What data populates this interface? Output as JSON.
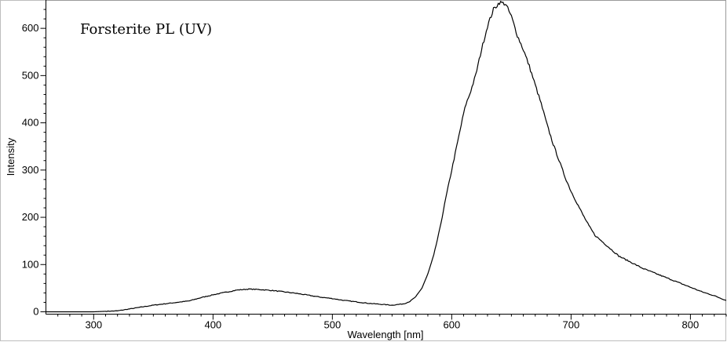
{
  "chart_data": {
    "type": "line",
    "title": "Forsterite PL (UV)",
    "xlabel": "Wavelength [nm]",
    "ylabel": "Intensity",
    "xlim": [
      260,
      830
    ],
    "ylim": [
      -5,
      660
    ],
    "x_ticks": [
      300,
      400,
      500,
      600,
      700,
      800
    ],
    "y_ticks": [
      0,
      100,
      200,
      300,
      400,
      500,
      600
    ],
    "grid": false,
    "series": [
      {
        "line_color": "#000000",
        "x": [
          260,
          300,
          320,
          330,
          340,
          350,
          360,
          370,
          380,
          390,
          400,
          410,
          420,
          430,
          440,
          450,
          460,
          470,
          480,
          490,
          500,
          510,
          520,
          530,
          540,
          550,
          560,
          565,
          570,
          575,
          580,
          585,
          590,
          595,
          600,
          605,
          610,
          612,
          615,
          620,
          625,
          630,
          635,
          640,
          645,
          650,
          655,
          660,
          665,
          670,
          675,
          680,
          685,
          690,
          695,
          700,
          705,
          710,
          715,
          720,
          730,
          740,
          750,
          760,
          770,
          780,
          790,
          800,
          810,
          820,
          830
        ],
        "y": [
          0,
          0,
          2,
          6,
          10,
          14,
          17,
          20,
          23,
          30,
          36,
          41,
          46,
          48,
          47,
          45,
          42,
          39,
          35,
          31,
          28,
          24,
          21,
          18,
          16,
          14,
          17,
          22,
          32,
          50,
          80,
          120,
          175,
          240,
          300,
          360,
          420,
          440,
          460,
          500,
          555,
          605,
          640,
          655,
          652,
          625,
          585,
          555,
          520,
          480,
          440,
          395,
          355,
          320,
          285,
          255,
          230,
          205,
          182,
          162,
          140,
          118,
          105,
          92,
          82,
          72,
          62,
          52,
          42,
          34,
          24
        ]
      }
    ]
  }
}
